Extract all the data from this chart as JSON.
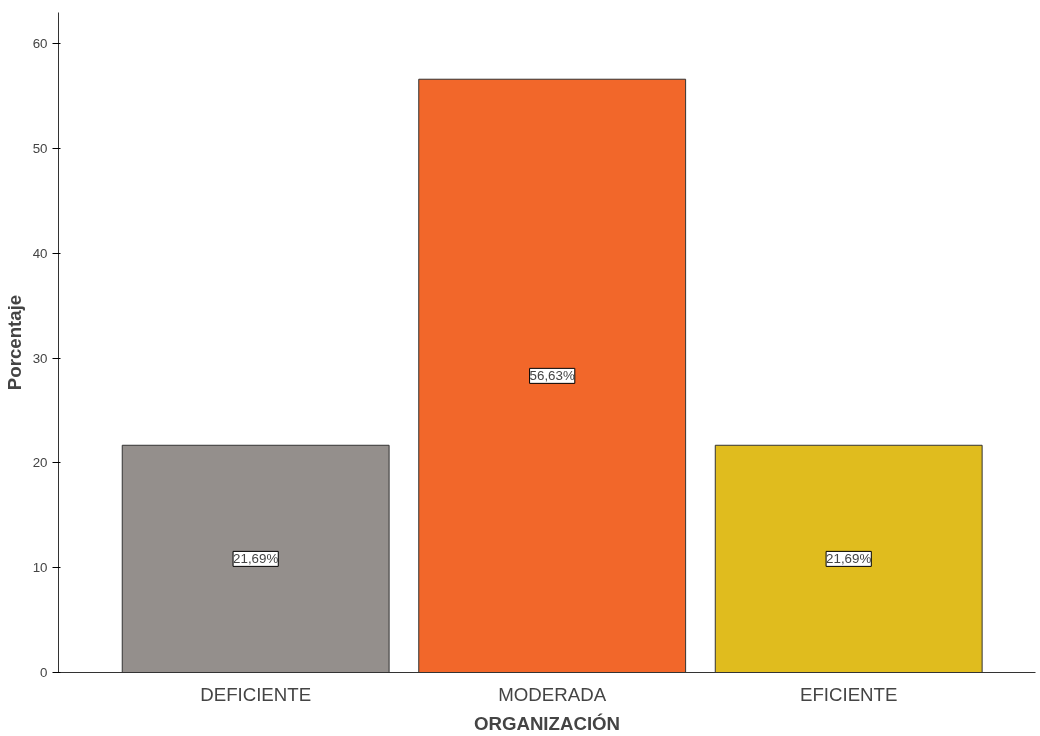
{
  "chart_data": {
    "type": "bar",
    "xlabel": "ORGANIZACIÓN",
    "ylabel": "Porcentaje",
    "categories": [
      "DEFICIENTE",
      "MODERADA",
      "EFICIENTE"
    ],
    "values": [
      21.69,
      56.63,
      21.69
    ],
    "colors": [
      "#948f8c",
      "#f2672a",
      "#e0bc1e"
    ],
    "value_labels": [
      "21,69%",
      "56,63%",
      "21,69%"
    ],
    "ylim": [
      0,
      63
    ],
    "yticks": [
      0,
      10,
      20,
      30,
      40,
      50,
      60
    ],
    "grid": false
  }
}
